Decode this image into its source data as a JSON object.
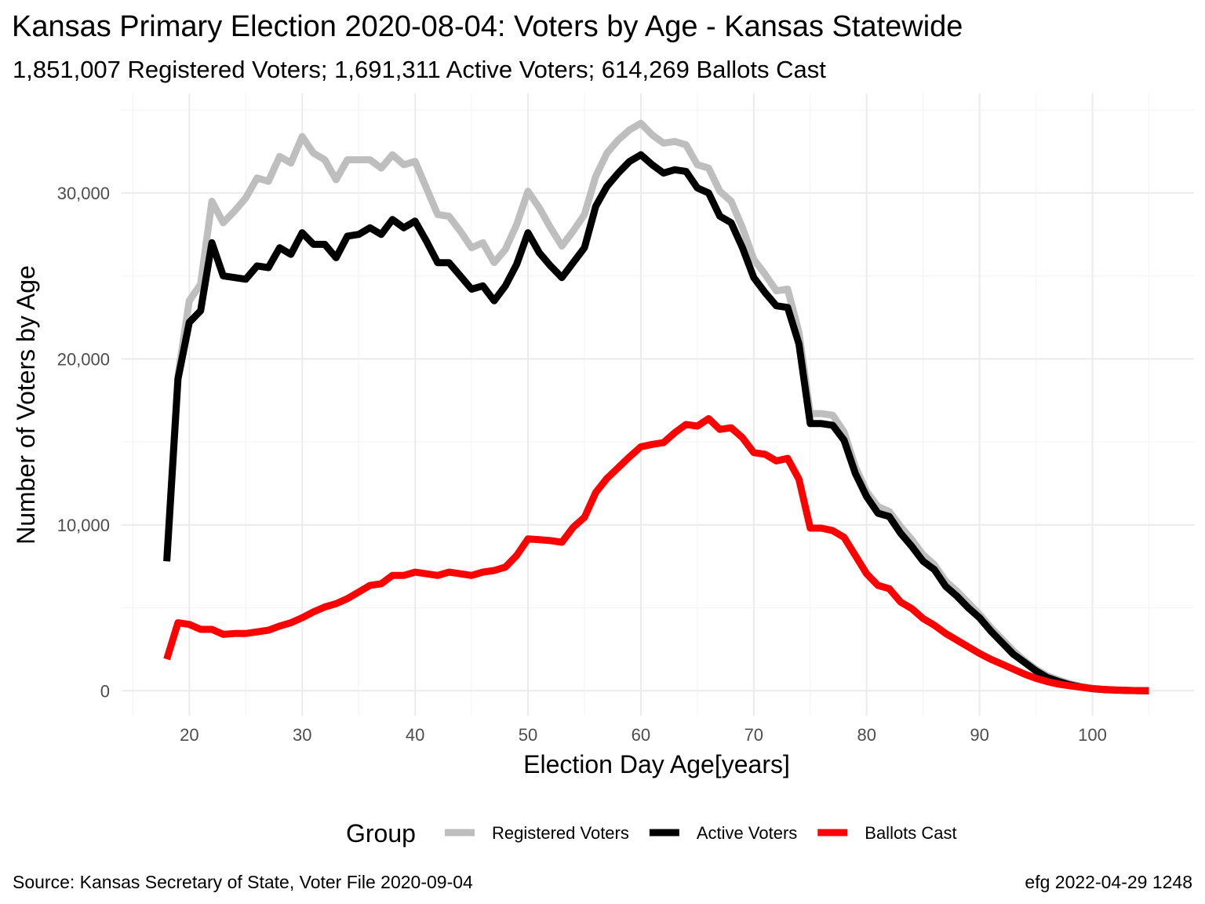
{
  "chart_data": {
    "type": "line",
    "title": "Kansas Primary Election 2020-08-04:  Voters by Age - Kansas Statewide",
    "subtitle": "1,851,007 Registered Voters; 1,691,311 Active Voters; 614,269 Ballots Cast",
    "xlabel": "Election Day Age[years]",
    "ylabel": "Number of Voters by Age",
    "xlim": [
      14,
      109
    ],
    "ylim": [
      -1500,
      36000
    ],
    "x_ticks": [
      20,
      30,
      40,
      50,
      60,
      70,
      80,
      90,
      100
    ],
    "x_tick_labels": [
      "20",
      "30",
      "40",
      "50",
      "60",
      "70",
      "80",
      "90",
      "100"
    ],
    "y_ticks": [
      0,
      10000,
      20000,
      30000
    ],
    "y_tick_labels": [
      "0",
      "10,000",
      "20,000",
      "30,000"
    ],
    "grid": true,
    "legend": {
      "title": "Group",
      "position": "bottom"
    },
    "x": [
      18,
      19,
      20,
      21,
      22,
      23,
      24,
      25,
      26,
      27,
      28,
      29,
      30,
      31,
      32,
      33,
      34,
      35,
      36,
      37,
      38,
      39,
      40,
      41,
      42,
      43,
      44,
      45,
      46,
      47,
      48,
      49,
      50,
      51,
      52,
      53,
      54,
      55,
      56,
      57,
      58,
      59,
      60,
      61,
      62,
      63,
      64,
      65,
      66,
      67,
      68,
      69,
      70,
      71,
      72,
      73,
      74,
      75,
      76,
      77,
      78,
      79,
      80,
      81,
      82,
      83,
      84,
      85,
      86,
      87,
      88,
      89,
      90,
      91,
      92,
      93,
      94,
      95,
      96,
      97,
      98,
      99,
      100,
      101,
      102,
      103,
      104,
      105
    ],
    "series": [
      {
        "name": "Registered Voters",
        "color": "#bebebe",
        "values": [
          8000,
          19000,
          23500,
          24500,
          29500,
          28200,
          28900,
          29700,
          30900,
          30700,
          32200,
          31800,
          33400,
          32400,
          32000,
          30800,
          32000,
          32000,
          32000,
          31500,
          32300,
          31700,
          31900,
          30300,
          28700,
          28600,
          27700,
          26700,
          27000,
          25800,
          26600,
          28100,
          30100,
          29100,
          27900,
          26800,
          27700,
          28700,
          31000,
          32400,
          33200,
          33800,
          34200,
          33500,
          33000,
          33100,
          32900,
          31700,
          31500,
          30100,
          29500,
          27900,
          26000,
          25100,
          24100,
          24200,
          21600,
          16700,
          16700,
          16600,
          15600,
          13500,
          12000,
          11100,
          10800,
          9900,
          9100,
          8200,
          7600,
          6600,
          6000,
          5300,
          4600,
          3800,
          3100,
          2400,
          1800,
          1300,
          900,
          650,
          420,
          260,
          150,
          90,
          50,
          30,
          15,
          5
        ]
      },
      {
        "name": "Active Voters",
        "color": "#000000",
        "values": [
          7800,
          18800,
          22200,
          22900,
          27000,
          25000,
          24900,
          24800,
          25600,
          25500,
          26700,
          26300,
          27600,
          26900,
          26900,
          26100,
          27400,
          27500,
          27900,
          27500,
          28400,
          27900,
          28300,
          27100,
          25800,
          25800,
          25000,
          24200,
          24400,
          23500,
          24400,
          25700,
          27600,
          26400,
          25600,
          24900,
          25800,
          26700,
          29200,
          30400,
          31200,
          31900,
          32300,
          31700,
          31200,
          31400,
          31300,
          30300,
          30000,
          28600,
          28200,
          26700,
          24900,
          24000,
          23200,
          23100,
          20900,
          16100,
          16100,
          16000,
          15100,
          13100,
          11700,
          10700,
          10500,
          9500,
          8700,
          7800,
          7300,
          6300,
          5700,
          5000,
          4400,
          3600,
          2900,
          2200,
          1700,
          1200,
          800,
          560,
          360,
          220,
          120,
          70,
          40,
          20,
          10,
          5
        ]
      },
      {
        "name": "Ballots Cast",
        "color": "#ff0000",
        "values": [
          1900,
          4100,
          4000,
          3700,
          3700,
          3400,
          3450,
          3450,
          3550,
          3650,
          3900,
          4100,
          4400,
          4750,
          5050,
          5250,
          5550,
          5950,
          6350,
          6450,
          6950,
          6950,
          7150,
          7050,
          6950,
          7150,
          7050,
          6950,
          7150,
          7250,
          7450,
          8150,
          9150,
          9100,
          9050,
          8950,
          9850,
          10450,
          11950,
          12800,
          13450,
          14100,
          14700,
          14850,
          14950,
          15550,
          16050,
          15950,
          16400,
          15750,
          15850,
          15250,
          14350,
          14250,
          13850,
          14000,
          12750,
          9800,
          9800,
          9650,
          9250,
          8150,
          7050,
          6350,
          6150,
          5350,
          4950,
          4350,
          3950,
          3450,
          3050,
          2650,
          2250,
          1900,
          1600,
          1300,
          1000,
          750,
          550,
          400,
          300,
          210,
          130,
          80,
          45,
          25,
          10,
          5
        ]
      }
    ]
  },
  "footer": {
    "source": "Source:  Kansas Secretary of State, Voter File  2020-09-04",
    "credit": "efg 2022-04-29 1248"
  }
}
